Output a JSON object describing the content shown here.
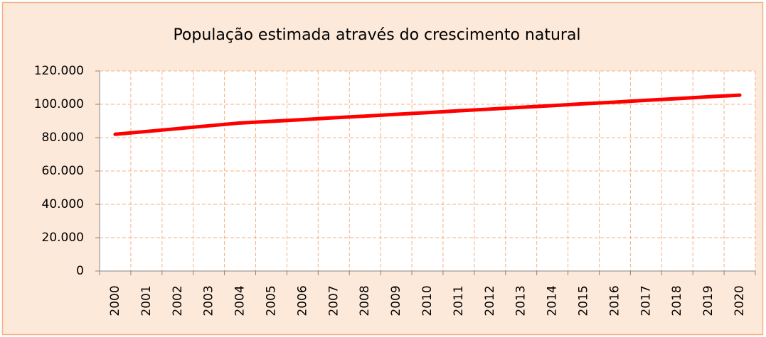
{
  "chart_data": {
    "type": "line",
    "title": "População estimada através do crescimento natural",
    "categories": [
      "2000",
      "2001",
      "2002",
      "2003",
      "2004",
      "2005",
      "2006",
      "2007",
      "2008",
      "2009",
      "2010",
      "2011",
      "2012",
      "2013",
      "2014",
      "2015",
      "2016",
      "2017",
      "2018",
      "2019",
      "2020"
    ],
    "series": [
      {
        "name": "População estimada",
        "color": "#ff0000",
        "values": [
          82000,
          83700,
          85400,
          87100,
          88800,
          89800,
          90800,
          91900,
          92900,
          94000,
          95000,
          96100,
          97100,
          98200,
          99200,
          100300,
          101300,
          102400,
          103400,
          104500,
          105500
        ]
      }
    ],
    "ylim": [
      0,
      120000
    ],
    "yticks": [
      0,
      {
        "value": 20000,
        "label": "20.000"
      },
      {
        "value": 40000,
        "label": "40.000"
      },
      {
        "value": 60000,
        "label": "60.000"
      },
      {
        "value": 80000,
        "label": "80.000"
      },
      {
        "value": 100000,
        "label": "100.000"
      },
      {
        "value": 120000,
        "label": "120.000"
      }
    ],
    "grid": true
  }
}
